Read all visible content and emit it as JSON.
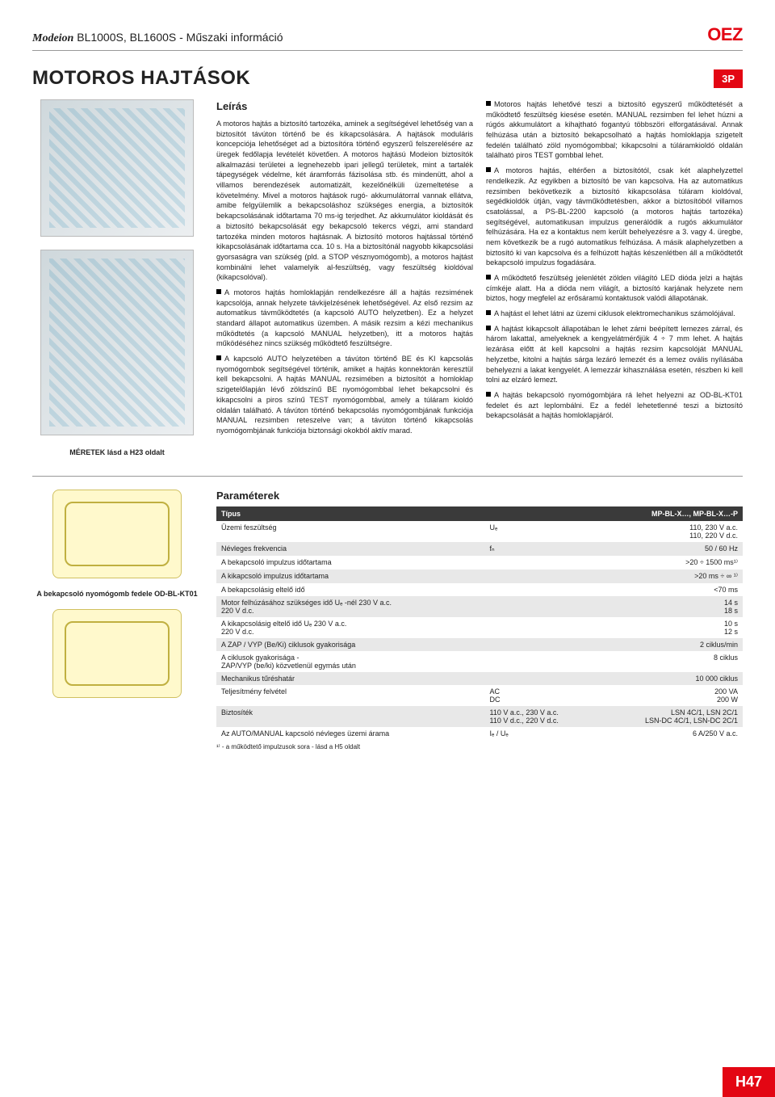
{
  "header": {
    "brand": "Modeion",
    "subtitle": "BL1000S, BL1600S - Műszaki információ",
    "logo": "OEZ"
  },
  "title": "MOTOROS HAJTÁSOK",
  "badge": "3P",
  "left": {
    "caption": "MÉRETEK lásd a H23 oldalt"
  },
  "desc": {
    "label": "Leírás",
    "col1_p1": "A motoros hajtás a biztosító tartozéka, aminek a segítségével lehetőség van a biztosítót távúton történő be és kikapcsolására. A hajtások moduláris koncepciója lehetőséget ad a biztosítóra történő egyszerű felszerelésére az üregek fedőlapja levételét követően. A motoros hajtású Modeion biztosítók alkalmazási területei a legnehezebb ipari jellegű területek, mint a tartalék tápegységek védelme, két áramforrás fázisolása stb. és mindenütt, ahol a villamos berendezések automatizált, kezelőnélküli üzemeltetése a követelmény. Mivel a motoros hajtások rugó- akkumulátorral vannak ellátva, amibe felgyülemlik a bekapcsoláshoz szükséges energia, a biztosítók bekapcsolásának időtartama 70 ms-ig terjedhet. Az akkumulátor kioldását és a biztosító bekapcsolását egy bekapcsoló tekercs végzi, ami standard tartozéka minden motoros hajtásnak. A biztosító motoros hajtással történő kikapcsolásának időtartama cca. 10 s. Ha a biztosítónál nagyobb kikapcsolási gyorsaságra van szükség (pld. a STOP vésznyomógomb), a motoros hajtást kombinálni lehet valamelyik al-feszültség, vagy feszültség kioldóval (kikapcsolóval).",
    "col1_p2": "A motoros hajtás homloklapján rendelkezésre áll a hajtás rezsimének kapcsolója, annak helyzete távkijelzésének lehetőségével. Az első rezsim az automatikus távműködtetés (a kapcsoló AUTO helyzetben). Ez a helyzet standard állapot automatikus üzemben. A másik rezsim a kézi mechanikus működtetés (a kapcsoló MANUAL helyzetben), itt a motoros hajtás működéséhez nincs szükség működtető feszültségre.",
    "col1_p3": "A kapcsoló AUTO helyzetében a távúton történő BE és KI kapcsolás nyomógombok segítségével történik, amiket a hajtás konnektorán keresztül kell bekapcsolni. A hajtás MANUAL rezsimében a biztosítót a homloklap szigetelőlapján lévő zöldszínű BE nyomógombbal lehet bekapcsolni és kikapcsolni a piros színű TEST nyomógombbal, amely a túláram kioldó oldalán található. A távúton történő bekapcsolás nyomógombjának funkciója MANUAL rezsimben reteszelve van; a távúton történő kikapcsolás nyomógombjának funkciója biztonsági okokból aktív marad.",
    "col2_p1": "Motoros hajtás lehetővé teszi a biztosító egyszerű működtetését a működtető feszültség kiesése esetén. MANUAL rezsimben fel lehet húzni a rúgós akkumulátort a kihajtható fogantyú többszöri elforgatásával. Annak felhúzása után a biztosító bekapcsolható a hajtás homloklapja szigetelt fedelén található zöld nyomógombbal; kikapcsolni a túláramkioldó oldalán található piros TEST gombbal lehet.",
    "col2_p2": "A motoros hajtás, eltérően a biztosítótól, csak két alaphelyzettel rendelkezik. Az egyikben a biztosító be van kapcsolva. Ha az automatikus rezsimben bekövetkezik a biztosító kikapcsolása túláram kioldóval, segédkioldók útján, vagy távműködtetésben, akkor a biztosítóból villamos csatolással, a PS-BL-2200 kapcsoló (a motoros hajtás tartozéka) segítségével, automatikusan impulzus generálódik a rugós akkumulátor felhúzására. Ha ez a kontaktus nem került behelyezésre a 3. vagy 4. üregbe, nem következik be a rugó automatikus felhúzása. A másik alaphelyzetben a biztosító ki van kapcsolva és a felhúzott hajtás készenlétben áll a működtetőt bekapcsoló impulzus fogadására.",
    "col2_p3": "A működtető feszültség jelenlétét zölden világító LED dióda jelzi a hajtás címkéje alatt. Ha a dióda nem világít, a biztosító karjának helyzete nem biztos, hogy megfelel az erősáramú kontaktusok valódi állapotának.",
    "col2_p4": "A hajtást el lehet látni az üzemi ciklusok elektromechanikus számolójával.",
    "col2_p5": "A hajtást kikapcsolt állapotában le lehet zárni beépített lemezes zárral, és három lakattal, amelyeknek a kengyelátmérőjük 4 ÷ 7 mm lehet. A hajtás lezárása előtt át kell kapcsolni a hajtás rezsim kapcsolóját MANUAL helyzetbe, kitolni a hajtás sárga lezáró lemezét és a lemez ovális nyílásába behelyezni a lakat kengyelét. A lemezzár kihasználása esetén, részben ki kell tolni az elzáró lemezt.",
    "col2_p6": "A hajtás bekapcsoló nyomógombjára rá lehet helyezni az OD-BL-KT01 fedelet és azt leplombálni. Ez a fedél lehetetlenné teszi a biztosító bekapcsolását a hajtás homloklapjáról."
  },
  "params": {
    "title": "Paraméterek",
    "head_type": "Típus",
    "head_model": "MP-BL-X…, MP-BL-X…-P",
    "rows": [
      {
        "label": "Üzemi feszültség",
        "mid": "Uₑ",
        "val": "110, 230 V a.c.\n110, 220 V d.c."
      },
      {
        "label": "Névleges frekvencia",
        "mid": "fₙ",
        "val": "50 / 60 Hz"
      },
      {
        "label": "A bekapcsoló impulzus időtartama",
        "mid": "",
        "val": ">20 ÷ 1500 ms¹⁾"
      },
      {
        "label": "A kikapcsoló impulzus időtartama",
        "mid": "",
        "val": ">20 ms ÷ ∞ ¹⁾"
      },
      {
        "label": "A bekapcsolásig eltelő idő",
        "mid": "",
        "val": "<70 ms"
      },
      {
        "label": "Motor felhúzásához szükséges idő Uₑ -nél 230 V a.c.\n220 V d.c.",
        "mid": "",
        "val": "14 s\n18 s"
      },
      {
        "label": "A kikapcsolásig eltelő idő Uₑ 230 V a.c.\n220 V d.c.",
        "mid": "",
        "val": "10 s\n12 s"
      },
      {
        "label": "A ZAP / VYP (Be/Ki) ciklusok gyakorisága",
        "mid": "",
        "val": "2 ciklus/min"
      },
      {
        "label": "A ciklusok gyakorisága -\nZAP/VYP (be/ki) közvetlenül egymás után",
        "mid": "",
        "val": "8 ciklus"
      },
      {
        "label": "Mechanikus tűréshatár",
        "mid": "",
        "val": "10 000 ciklus"
      },
      {
        "label": "Teljesítmény felvétel",
        "mid": "AC\nDC",
        "val": "200 VA\n200 W"
      },
      {
        "label": "Biztosíték",
        "mid": "110 V a.c., 230 V a.c.\n110 V d.c., 220 V d.c.",
        "val": "LSN 4C/1, LSN 2C/1\nLSN-DC 4C/1, LSN-DC 2C/1"
      },
      {
        "label": "Az AUTO/MANUAL kapcsoló névleges üzemi árama",
        "mid": "Iₑ / Uₑ",
        "val": "6 A/250 V a.c."
      }
    ],
    "footnote": "¹⁾ - a működtető impulzusok sora - lásd a H5 oldalt"
  },
  "lower_left": {
    "caption": "A bekapcsoló nyomógomb fedele OD-BL-KT01"
  },
  "page_tab": "H47"
}
